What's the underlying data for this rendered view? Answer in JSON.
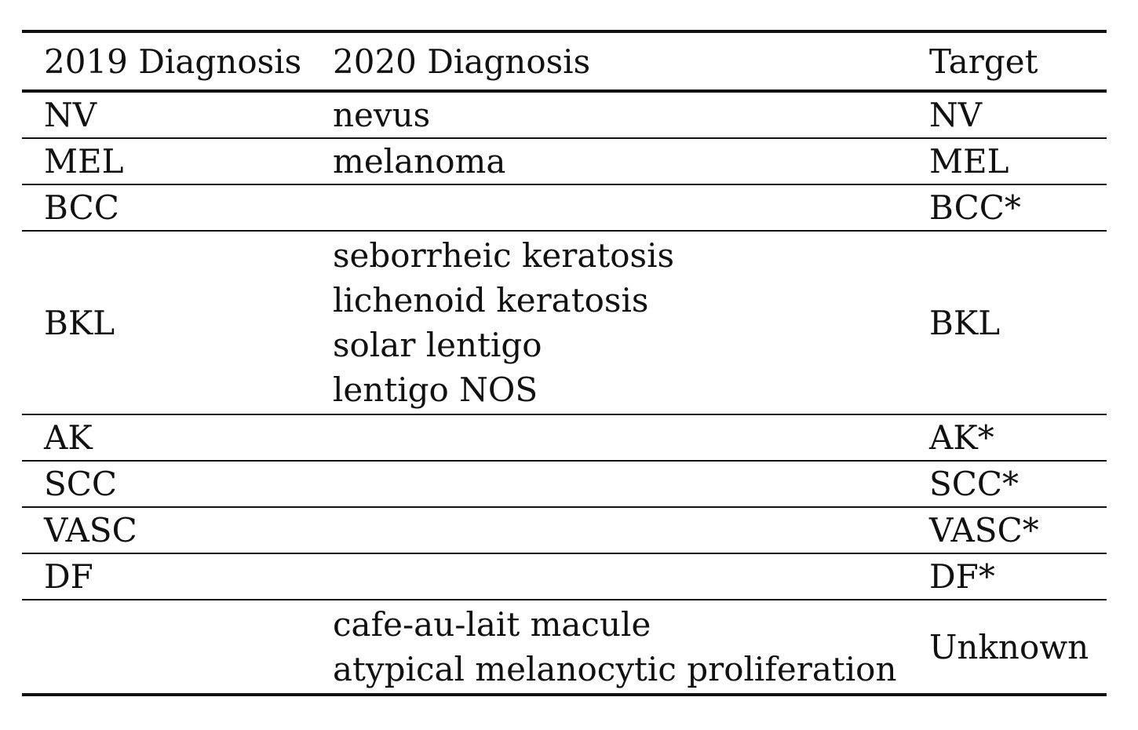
{
  "table": {
    "headers": [
      "2019 Diagnosis",
      "2020 Diagnosis",
      "Target"
    ],
    "rows": [
      {
        "diagnosis_2019": "NV",
        "diagnosis_2020": [
          "nevus"
        ],
        "target": "NV"
      },
      {
        "diagnosis_2019": "MEL",
        "diagnosis_2020": [
          "melanoma"
        ],
        "target": "MEL"
      },
      {
        "diagnosis_2019": "BCC",
        "diagnosis_2020": [],
        "target": "BCC*"
      },
      {
        "diagnosis_2019": "BKL",
        "diagnosis_2020": [
          "seborrheic keratosis",
          "lichenoid keratosis",
          "solar lentigo",
          "lentigo NOS"
        ],
        "target": "BKL"
      },
      {
        "diagnosis_2019": "AK",
        "diagnosis_2020": [],
        "target": "AK*"
      },
      {
        "diagnosis_2019": "SCC",
        "diagnosis_2020": [],
        "target": "SCC*"
      },
      {
        "diagnosis_2019": "VASC",
        "diagnosis_2020": [],
        "target": "VASC*"
      },
      {
        "diagnosis_2019": "DF",
        "diagnosis_2020": [],
        "target": "DF*"
      },
      {
        "diagnosis_2019": "",
        "diagnosis_2020": [
          "cafe-au-lait macule",
          "atypical melanocytic proliferation"
        ],
        "target": "Unknown"
      }
    ]
  }
}
